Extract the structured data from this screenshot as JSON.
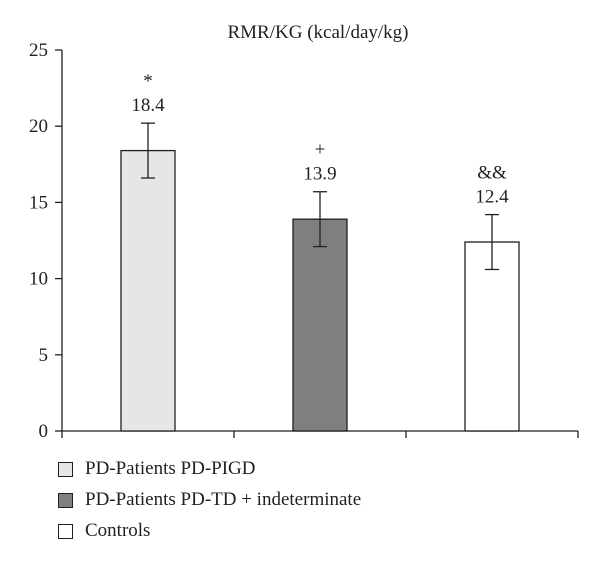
{
  "chart_data": {
    "type": "bar",
    "title": "RMR/KG (kcal/day/kg)",
    "xlabel": "",
    "ylabel": "",
    "ylim": [
      0,
      25
    ],
    "yticks": [
      0,
      5,
      10,
      15,
      20,
      25
    ],
    "grid": false,
    "legend_position": "bottom",
    "series": [
      {
        "name": "PD-Patients PD-PIGD",
        "value": 18.4,
        "error": 1.8,
        "label": "18.4",
        "marker": "*",
        "color": "#e6e6e6"
      },
      {
        "name": "PD-Patients PD-TD + indeterminate",
        "value": 13.9,
        "error": 1.8,
        "label": "13.9",
        "marker": "+",
        "color": "#7f7f7f"
      },
      {
        "name": "Controls",
        "value": 12.4,
        "error": 1.8,
        "label": "12.4",
        "marker": "&&",
        "color": "#ffffff"
      }
    ]
  }
}
